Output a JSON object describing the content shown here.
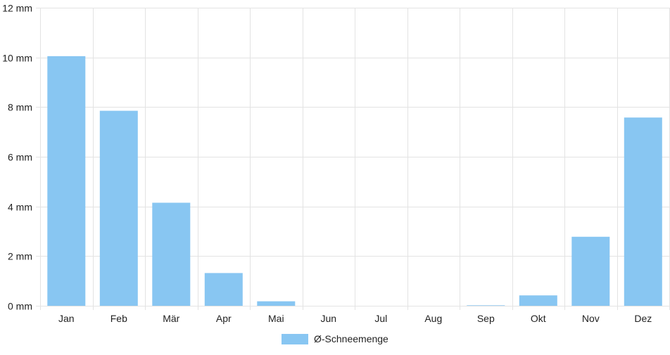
{
  "chart_data": {
    "type": "bar",
    "categories": [
      "Jan",
      "Feb",
      "Mär",
      "Apr",
      "Mai",
      "Jun",
      "Jul",
      "Aug",
      "Sep",
      "Okt",
      "Nov",
      "Dez"
    ],
    "series": [
      {
        "name": "Ø-Schneemenge",
        "values": [
          10.05,
          7.85,
          4.15,
          1.32,
          0.18,
          0,
          0,
          0,
          0.02,
          0.42,
          2.78,
          7.58
        ],
        "color": "#88c6f2"
      }
    ],
    "y_ticks": [
      "0 mm",
      "2 mm",
      "4 mm",
      "6 mm",
      "8 mm",
      "10 mm",
      "12 mm"
    ],
    "ylim": [
      0,
      12
    ],
    "grid": true,
    "legend_position": "bottom"
  }
}
